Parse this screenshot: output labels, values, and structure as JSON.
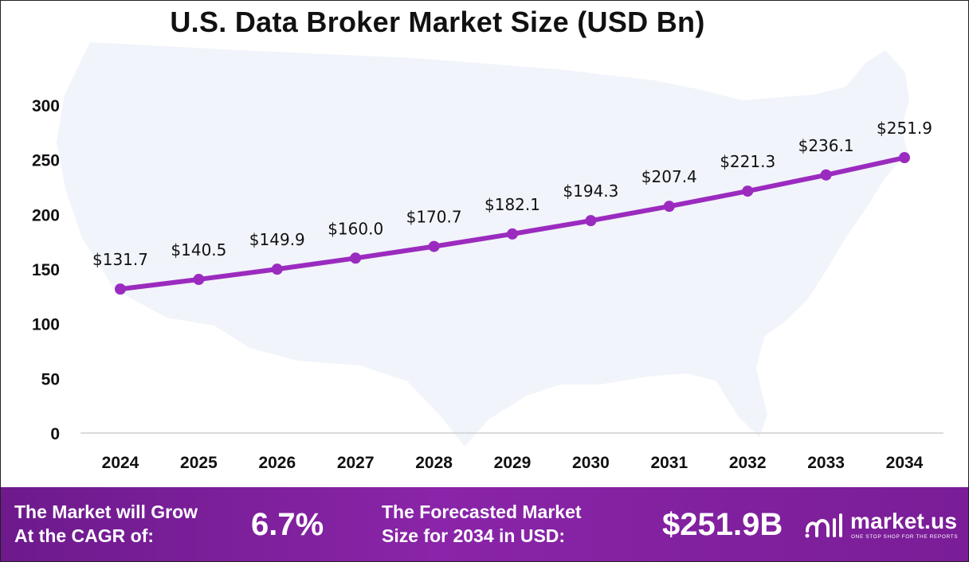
{
  "chart_data": {
    "type": "line",
    "title": "U.S. Data Broker Market Size (USD Bn)",
    "categories": [
      "2024",
      "2025",
      "2026",
      "2027",
      "2028",
      "2029",
      "2030",
      "2031",
      "2032",
      "2033",
      "2034"
    ],
    "series": [
      {
        "values": [
          131.7,
          140.5,
          149.9,
          160.0,
          170.7,
          182.1,
          194.3,
          207.4,
          221.3,
          236.1,
          251.9
        ],
        "labels": [
          "$131.7",
          "$140.5",
          "$149.9",
          "$160.0",
          "$170.7",
          "$182.1",
          "$194.3",
          "$207.4",
          "$221.3",
          "$236.1",
          "$251.9"
        ]
      }
    ],
    "y_ticks": [
      "0",
      "50",
      "100",
      "150",
      "200",
      "250",
      "300"
    ],
    "ylim": [
      0,
      300
    ],
    "grid": false,
    "line_color": "#9b2bbf",
    "background_shape": "usa-map-silhouette"
  },
  "footer": {
    "cagr_label_line1": "The Market will Grow",
    "cagr_label_line2": "At the CAGR of:",
    "cagr_value": "6.7%",
    "forecast_label_line1": "The Forecasted Market",
    "forecast_label_line2": "Size for 2034 in USD:",
    "forecast_value": "$251.9B",
    "brand_name": "market.us",
    "brand_tagline": "ONE STOP SHOP FOR THE REPORTS",
    "brand_icon": "market-us-logo-icon",
    "background_color": "#7a1d97"
  }
}
